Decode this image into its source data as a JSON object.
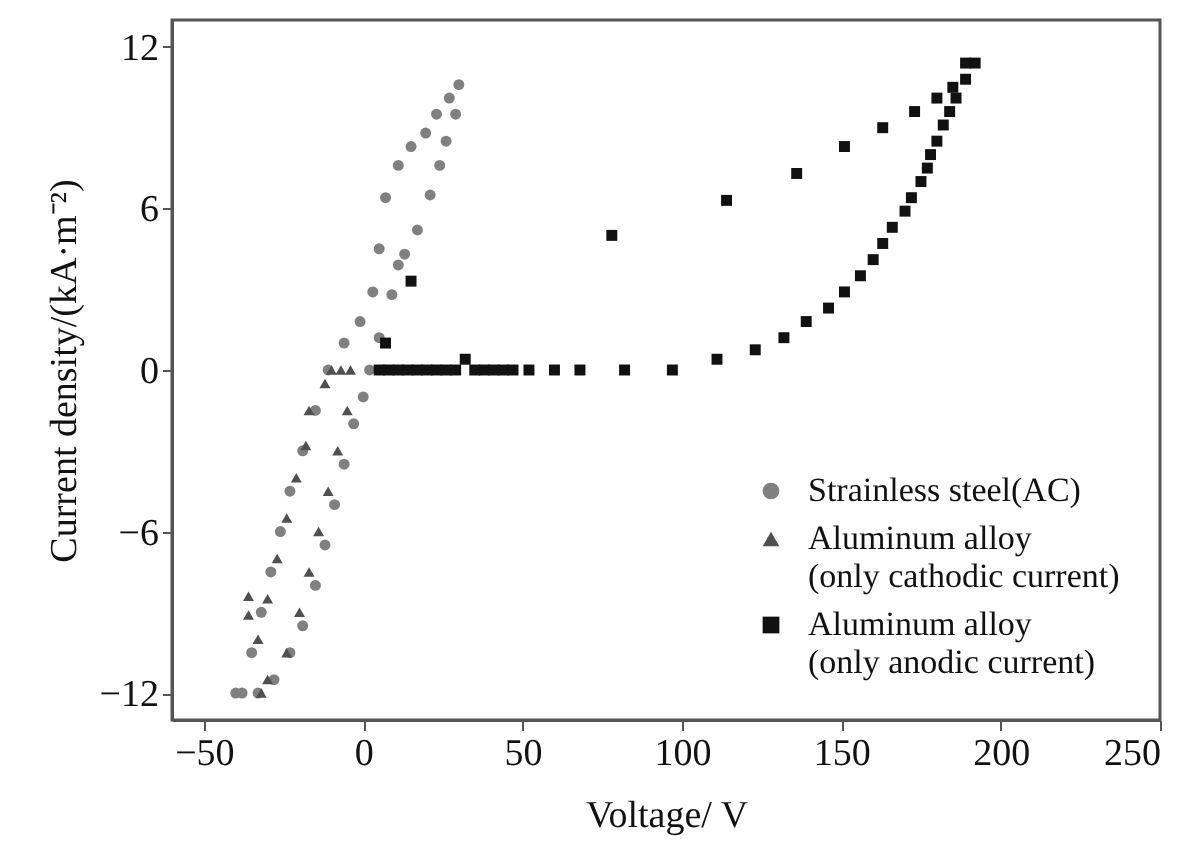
{
  "chart_data": {
    "type": "scatter",
    "xlabel": "Voltage/ V",
    "ylabel": "Current density/(kA·m⁻²)",
    "xlim": [
      -60,
      250
    ],
    "xticks": [
      -50,
      0,
      50,
      100,
      150,
      200,
      250
    ],
    "ylim": [
      -13,
      13
    ],
    "yticks": [
      -12,
      -6,
      0,
      6,
      12
    ],
    "grid": false,
    "legend": "bottom right",
    "series": [
      {
        "name": "Strainless steel(AC)",
        "color": "#808080",
        "marker": "circle",
        "x": [
          -38,
          -35,
          -32,
          -29,
          -26,
          -23,
          -19,
          -15,
          -11,
          -6,
          -1,
          3,
          5,
          7,
          11,
          15,
          19.6,
          23,
          27,
          30,
          29,
          26,
          24,
          21,
          17,
          13,
          11,
          9,
          5,
          2,
          0,
          -3,
          -6,
          -9,
          -12,
          -15,
          -19,
          -23,
          -28,
          -33,
          -40
        ],
        "values": [
          -12,
          -10.5,
          -9,
          -7.5,
          -6,
          -4.5,
          -3,
          -1.5,
          0,
          1,
          1.8,
          2.9,
          4.5,
          6.4,
          7.6,
          8.3,
          8.8,
          9.5,
          10.1,
          10.6,
          9.5,
          8.5,
          7.6,
          6.5,
          5.2,
          4.3,
          3.9,
          2.8,
          1.2,
          0,
          -1,
          -2,
          -3.5,
          -5,
          -6.5,
          -8,
          -9.5,
          -10.5,
          -11.5,
          -12,
          -12
        ]
      },
      {
        "name": "Aluminum alloy (only cathodic current)",
        "color": "#505050",
        "marker": "triangle",
        "x": [
          -36,
          -36,
          -33,
          -30,
          -27,
          -24,
          -21,
          -18,
          -17,
          -12,
          -10,
          -7,
          -4,
          -5,
          -8,
          -11,
          -14,
          -17,
          -20,
          -24,
          -30,
          -32
        ],
        "values": [
          -8.4,
          -9.1,
          -10,
          -8.5,
          -7,
          -5.5,
          -4,
          -2.8,
          -1.5,
          -0.5,
          0,
          0,
          0,
          -1.5,
          -3,
          -4.5,
          -6,
          -7.5,
          -9,
          -10.5,
          -11.5,
          -12
        ]
      },
      {
        "name": "Aluminum alloy (only anodic current)",
        "color": "#111111",
        "marker": "square",
        "x": [
          5,
          8,
          11,
          14,
          17,
          20,
          23,
          26,
          29,
          32,
          35,
          38,
          41,
          44,
          47,
          52,
          60,
          68,
          82,
          97,
          111,
          123,
          132,
          139,
          146,
          151,
          156,
          160,
          163,
          166,
          170,
          172,
          175,
          177,
          178,
          180,
          182,
          184,
          186,
          189,
          192,
          189,
          185,
          180,
          173,
          163,
          151,
          136,
          114,
          78,
          15,
          7
        ],
        "values": [
          0,
          0,
          0,
          0,
          0,
          0,
          0,
          0,
          0,
          0.4,
          0,
          0,
          0,
          0,
          0,
          0,
          0,
          0,
          0,
          0,
          0.4,
          0.75,
          1.2,
          1.8,
          2.3,
          2.9,
          3.5,
          4.1,
          4.7,
          5.3,
          5.9,
          6.4,
          7,
          7.5,
          8,
          8.5,
          9.1,
          9.6,
          10.1,
          10.8,
          11.4,
          11.4,
          10.5,
          10.1,
          9.6,
          9,
          8.3,
          7.3,
          6.3,
          5,
          3.3,
          1
        ]
      }
    ]
  }
}
